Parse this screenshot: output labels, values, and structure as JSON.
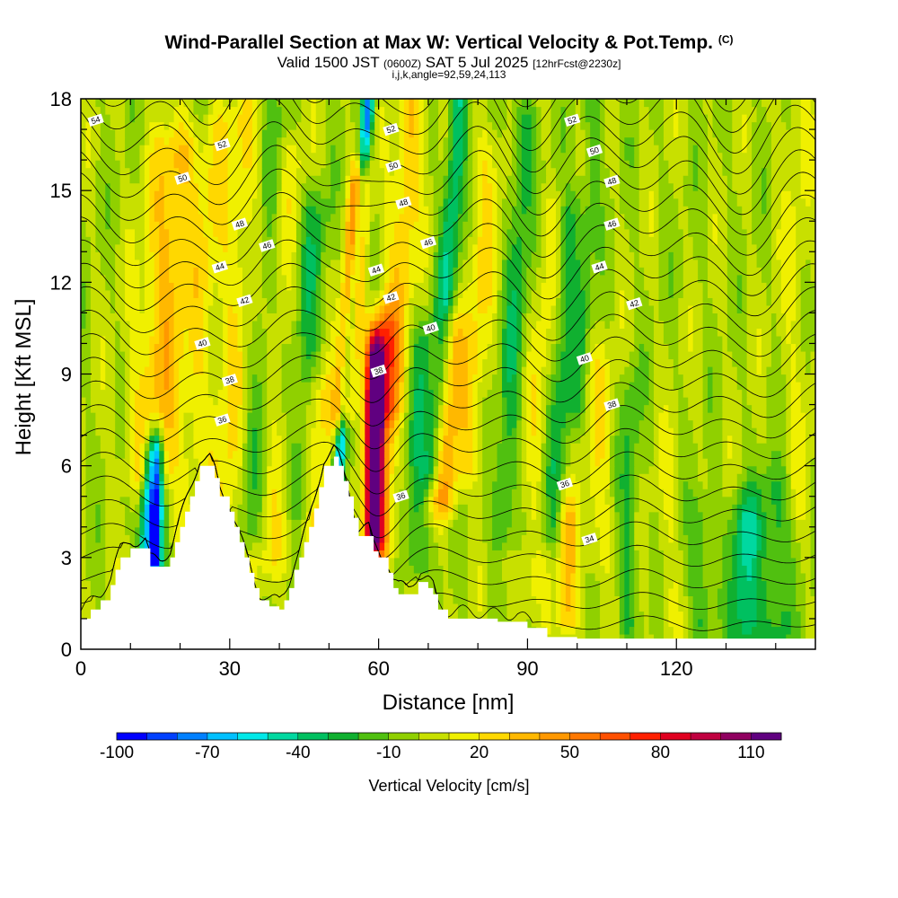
{
  "header": {
    "title": "Wind-Parallel Section at Max W: Vertical Velocity & Pot.Temp.",
    "title_mark": "(C)",
    "valid_prefix": "Valid 1500 JST",
    "valid_utc": "(0600Z)",
    "valid_date": "SAT 5 Jul 2025",
    "forecast": "[12hrFcst@2230z]",
    "indices": "i,j,k,angle=92,59,24,113"
  },
  "chart_data": {
    "type": "heatmap",
    "xlabel": "Distance [nm]",
    "ylabel": "Height [Kft MSL]",
    "xlim": [
      0,
      148
    ],
    "ylim": [
      0,
      18
    ],
    "x_ticks": [
      0,
      30,
      60,
      90,
      120
    ],
    "y_ticks": [
      0,
      3,
      6,
      9,
      12,
      15,
      18
    ],
    "grid": false,
    "colorbar": {
      "title": "Vertical Velocity [cm/s]",
      "placement": "bottom",
      "min": -100,
      "max": 120,
      "step": 10,
      "tick_labels": [
        -100,
        -70,
        -40,
        -10,
        20,
        50,
        80,
        110
      ],
      "colors": [
        "#0000ff",
        "#0040ff",
        "#0080ff",
        "#00c0ff",
        "#00e8e8",
        "#00d8a0",
        "#00c060",
        "#10b030",
        "#50c010",
        "#90d000",
        "#c8e000",
        "#f0f000",
        "#ffd800",
        "#ffb800",
        "#ff9800",
        "#ff7800",
        "#ff5000",
        "#ff2000",
        "#e00020",
        "#c00040",
        "#900060",
        "#600080"
      ]
    },
    "terrain_kft": [
      [
        0,
        1.0
      ],
      [
        2,
        1.3
      ],
      [
        4,
        1.6
      ],
      [
        6,
        2.1
      ],
      [
        7,
        2.6
      ],
      [
        8,
        3.0
      ],
      [
        10,
        3.3
      ],
      [
        13,
        3.3
      ],
      [
        14,
        2.7
      ],
      [
        16,
        2.7
      ],
      [
        18,
        3.0
      ],
      [
        19,
        3.5
      ],
      [
        20,
        4.0
      ],
      [
        21,
        4.5
      ],
      [
        22,
        5.0
      ],
      [
        23,
        5.5
      ],
      [
        24,
        6.0
      ],
      [
        26,
        6.0
      ],
      [
        27,
        5.6
      ],
      [
        28,
        5.0
      ],
      [
        30,
        4.5
      ],
      [
        31,
        4.0
      ],
      [
        32,
        3.5
      ],
      [
        33,
        3.0
      ],
      [
        34,
        2.5
      ],
      [
        35,
        2.0
      ],
      [
        36,
        1.6
      ],
      [
        38,
        1.4
      ],
      [
        40,
        1.3
      ],
      [
        41,
        1.6
      ],
      [
        42,
        2.0
      ],
      [
        43,
        2.6
      ],
      [
        44,
        3.0
      ],
      [
        45,
        3.5
      ],
      [
        46,
        4.0
      ],
      [
        47,
        4.6
      ],
      [
        48,
        5.3
      ],
      [
        49,
        6.0
      ],
      [
        51,
        6.3
      ],
      [
        52,
        6.0
      ],
      [
        53,
        5.5
      ],
      [
        54,
        5.0
      ],
      [
        55,
        4.3
      ],
      [
        56,
        3.7
      ],
      [
        58,
        3.7
      ],
      [
        59,
        3.2
      ],
      [
        60,
        3.0
      ],
      [
        62,
        2.5
      ],
      [
        63,
        2.0
      ],
      [
        64,
        1.8
      ],
      [
        66,
        1.8
      ],
      [
        68,
        2.2
      ],
      [
        70,
        2.0
      ],
      [
        71,
        1.8
      ],
      [
        72,
        1.3
      ],
      [
        74,
        1.0
      ],
      [
        78,
        1.0
      ],
      [
        84,
        0.9
      ],
      [
        88,
        0.9
      ],
      [
        90,
        0.7
      ],
      [
        94,
        0.4
      ],
      [
        100,
        0.35
      ],
      [
        148,
        0.35
      ]
    ],
    "velocity_features": [
      {
        "x": 14,
        "z0": 6,
        "z1": 16,
        "width": 5,
        "value": 35,
        "slant": 0.55
      },
      {
        "x": 15,
        "z0": 3,
        "z1": 6,
        "width": 1.3,
        "value": -90,
        "slant": 0.1
      },
      {
        "x": 13,
        "z0": 3,
        "z1": 6,
        "width": 1.5,
        "value": -60,
        "slant": 0.2
      },
      {
        "x": 21,
        "z0": 4,
        "z1": 17,
        "width": 3,
        "value": 15,
        "slant": 0.5
      },
      {
        "x": 28,
        "z0": 3,
        "z1": 17,
        "width": 4,
        "value": 20,
        "slant": 0.4
      },
      {
        "x": 34,
        "z0": 4,
        "z1": 17,
        "width": 3,
        "value": -20,
        "slant": 0.4
      },
      {
        "x": 38,
        "z0": 3,
        "z1": 16,
        "width": 4,
        "value": 15,
        "slant": 0.3
      },
      {
        "x": 44,
        "z0": 5,
        "z1": 14,
        "width": 3,
        "value": -25,
        "slant": 0.3
      },
      {
        "x": 48,
        "z0": 3,
        "z1": 8,
        "width": 3,
        "value": 30,
        "slant": 0.1
      },
      {
        "x": 52,
        "z0": 6,
        "z1": 18,
        "width": 1.2,
        "value": -75,
        "slant": 0.5
      },
      {
        "x": 53,
        "z0": 8,
        "z1": 15,
        "width": 1.8,
        "value": 85,
        "slant": 0.45
      },
      {
        "x": 59,
        "z0": 4,
        "z1": 9,
        "width": 1.5,
        "value": 115,
        "slant": 0.05
      },
      {
        "x": 60,
        "z0": 3.5,
        "z1": 10,
        "width": 3,
        "value": 60,
        "slant": 0.05
      },
      {
        "x": 62,
        "z0": 8,
        "z1": 18,
        "width": 3,
        "value": 30,
        "slant": 0.5
      },
      {
        "x": 67,
        "z0": 3,
        "z1": 10,
        "width": 2.5,
        "value": -25,
        "slant": 0.3
      },
      {
        "x": 71,
        "z0": 6,
        "z1": 18,
        "width": 2,
        "value": -40,
        "slant": 0.45
      },
      {
        "x": 73,
        "z0": 5,
        "z1": 10,
        "width": 3,
        "value": 40,
        "slant": 0.2
      },
      {
        "x": 78,
        "z0": 6,
        "z1": 16,
        "width": 3,
        "value": 20,
        "slant": 0.4
      },
      {
        "x": 85,
        "z0": 4,
        "z1": 17,
        "width": 2.5,
        "value": -25,
        "slant": 0.35
      },
      {
        "x": 90,
        "z0": 2,
        "z1": 14,
        "width": 3,
        "value": 15,
        "slant": 0.4
      },
      {
        "x": 95,
        "z0": 4,
        "z1": 14,
        "width": 2.5,
        "value": -25,
        "slant": 0.35
      },
      {
        "x": 98,
        "z0": 1,
        "z1": 4,
        "width": 2,
        "value": 35,
        "slant": 0
      },
      {
        "x": 100,
        "z0": 8,
        "z1": 18,
        "width": 2,
        "value": -15,
        "slant": 0.35
      },
      {
        "x": 104,
        "z0": 3,
        "z1": 9,
        "width": 3,
        "value": 15,
        "slant": 0.1
      },
      {
        "x": 110,
        "z0": 1,
        "z1": 8,
        "width": 2,
        "value": -20,
        "slant": 0.1
      },
      {
        "x": 118,
        "z0": 1,
        "z1": 6,
        "width": 2.5,
        "value": 10,
        "slant": 0.1
      },
      {
        "x": 125,
        "z0": 1,
        "z1": 4,
        "width": 2.5,
        "value": -20,
        "slant": 0
      },
      {
        "x": 134,
        "z0": 0.5,
        "z1": 4,
        "width": 3,
        "value": -40,
        "slant": 0
      },
      {
        "x": 140,
        "z0": 0.5,
        "z1": 5,
        "width": 3,
        "value": -25,
        "slant": 0
      },
      {
        "x": 144,
        "z0": 5,
        "z1": 18,
        "width": 3,
        "value": 10,
        "slant": 0
      }
    ],
    "theta_contours_levels": [
      34,
      36,
      38,
      40,
      42,
      44,
      46,
      48,
      50,
      52,
      54
    ],
    "theta_contour_labels": [
      {
        "label": "54",
        "x": 3,
        "z": 17.3
      },
      {
        "label": "52",
        "x": 28.5,
        "z": 16.5
      },
      {
        "label": "50",
        "x": 20.5,
        "z": 15.4
      },
      {
        "label": "48",
        "x": 32,
        "z": 13.9
      },
      {
        "label": "46",
        "x": 37.5,
        "z": 13.2
      },
      {
        "label": "44",
        "x": 28,
        "z": 12.5
      },
      {
        "label": "42",
        "x": 33,
        "z": 11.4
      },
      {
        "label": "40",
        "x": 24.5,
        "z": 10.0
      },
      {
        "label": "38",
        "x": 30,
        "z": 8.8
      },
      {
        "label": "36",
        "x": 28.5,
        "z": 7.5
      },
      {
        "label": "52",
        "x": 62.5,
        "z": 17.0
      },
      {
        "label": "50",
        "x": 63,
        "z": 15.8
      },
      {
        "label": "48",
        "x": 65,
        "z": 14.6
      },
      {
        "label": "46",
        "x": 70,
        "z": 13.3
      },
      {
        "label": "44",
        "x": 59.5,
        "z": 12.4
      },
      {
        "label": "42",
        "x": 62.5,
        "z": 11.5
      },
      {
        "label": "40",
        "x": 70.5,
        "z": 10.5
      },
      {
        "label": "38",
        "x": 60,
        "z": 9.1
      },
      {
        "label": "36",
        "x": 64.5,
        "z": 5.0
      },
      {
        "label": "52",
        "x": 99,
        "z": 17.3
      },
      {
        "label": "50",
        "x": 103.5,
        "z": 16.3
      },
      {
        "label": "48",
        "x": 107,
        "z": 15.3
      },
      {
        "label": "46",
        "x": 107,
        "z": 13.9
      },
      {
        "label": "44",
        "x": 104.5,
        "z": 12.5
      },
      {
        "label": "42",
        "x": 111.5,
        "z": 11.3
      },
      {
        "label": "40",
        "x": 101.5,
        "z": 9.5
      },
      {
        "label": "38",
        "x": 107,
        "z": 8.0
      },
      {
        "label": "36",
        "x": 97.5,
        "z": 5.4
      },
      {
        "label": "34",
        "x": 102.5,
        "z": 3.6
      }
    ]
  }
}
